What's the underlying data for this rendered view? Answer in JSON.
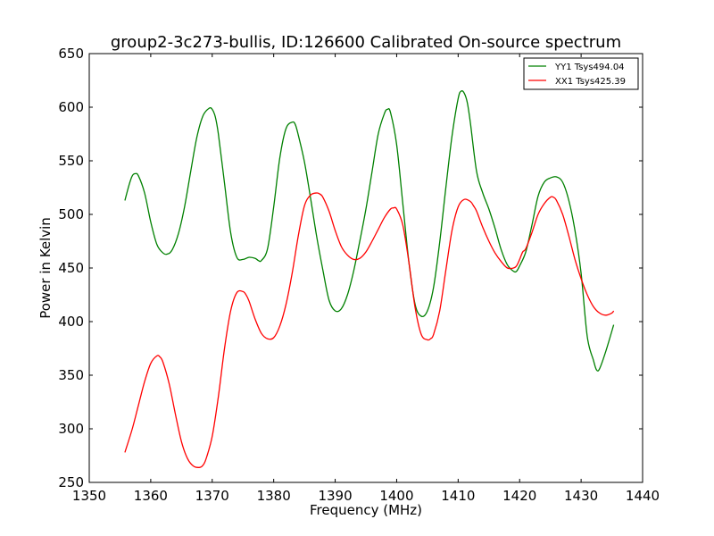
{
  "chart_data": {
    "type": "line",
    "title": "group2-3c273-bullis, ID:126600 Calibrated On-source spectrum",
    "xlabel": "Frequency (MHz)",
    "ylabel": "Power in Kelvin",
    "xlim": [
      1350,
      1440
    ],
    "ylim": [
      250,
      650
    ],
    "xticks": [
      1350,
      1360,
      1370,
      1380,
      1390,
      1400,
      1410,
      1420,
      1430,
      1440
    ],
    "yticks": [
      250,
      300,
      350,
      400,
      450,
      500,
      550,
      600,
      650
    ],
    "grid": false,
    "legend_position": "top-right",
    "series": [
      {
        "name": "YY1 Tsys494.04",
        "color": "#008000",
        "x": [
          1355.8,
          1356.5,
          1357.0,
          1357.5,
          1358.0,
          1359.0,
          1360.0,
          1361.0,
          1362.0,
          1362.7,
          1363.5,
          1364.5,
          1365.5,
          1366.5,
          1367.5,
          1368.5,
          1369.5,
          1370.0,
          1370.5,
          1371.0,
          1372.0,
          1373.0,
          1374.0,
          1375.0,
          1376.0,
          1377.0,
          1377.5,
          1378.0,
          1379.0,
          1380.0,
          1381.0,
          1382.0,
          1383.0,
          1383.5,
          1384.0,
          1385.0,
          1386.0,
          1387.0,
          1388.0,
          1389.0,
          1390.0,
          1391.0,
          1392.0,
          1393.0,
          1394.0,
          1395.0,
          1396.0,
          1397.0,
          1398.0,
          1398.5,
          1399.0,
          1400.0,
          1401.0,
          1402.0,
          1403.0,
          1404.0,
          1405.0,
          1406.0,
          1407.0,
          1408.0,
          1409.0,
          1410.0,
          1410.5,
          1411.0,
          1411.5,
          1412.0,
          1413.0,
          1414.0,
          1415.0,
          1416.0,
          1417.0,
          1418.0,
          1419.0,
          1419.5,
          1420.0,
          1421.0,
          1422.0,
          1423.0,
          1424.0,
          1425.0,
          1426.0,
          1427.0,
          1428.0,
          1429.0,
          1430.0,
          1431.0,
          1432.0,
          1432.5,
          1433.0,
          1434.0,
          1435.3
        ],
        "values": [
          513,
          528,
          536,
          538,
          536,
          520,
          493,
          472,
          464,
          463,
          467,
          482,
          507,
          540,
          572,
          592,
          599,
          598,
          591,
          575,
          529,
          483,
          460,
          458,
          460,
          459,
          457,
          457,
          468,
          507,
          553,
          580,
          586,
          584,
          574,
          549,
          515,
          479,
          448,
          420,
          410,
          412,
          425,
          447,
          475,
          505,
          540,
          575,
          594,
          598,
          595,
          565,
          510,
          455,
          416,
          405,
          410,
          432,
          474,
          525,
          573,
          608,
          615,
          613,
          604,
          585,
          540,
          520,
          505,
          487,
          467,
          453,
          447,
          447,
          452,
          465,
          490,
          517,
          530,
          534,
          535,
          530,
          513,
          485,
          445,
          386,
          364,
          355,
          356,
          372,
          397
        ]
      },
      {
        "name": "XX1 Tsys425.39",
        "color": "#ff0000",
        "x": [
          1355.8,
          1357.0,
          1358.0,
          1359.0,
          1360.0,
          1361.0,
          1361.5,
          1362.0,
          1363.0,
          1364.0,
          1365.0,
          1366.0,
          1367.0,
          1368.0,
          1368.5,
          1369.0,
          1370.0,
          1371.0,
          1372.0,
          1373.0,
          1374.0,
          1375.0,
          1375.5,
          1376.0,
          1377.0,
          1378.0,
          1379.0,
          1380.0,
          1381.0,
          1382.0,
          1383.0,
          1384.0,
          1385.0,
          1386.0,
          1387.0,
          1387.5,
          1388.0,
          1389.0,
          1390.0,
          1391.0,
          1392.0,
          1393.0,
          1394.0,
          1395.0,
          1396.0,
          1397.0,
          1398.0,
          1399.0,
          1399.5,
          1400.0,
          1401.0,
          1402.0,
          1403.0,
          1404.0,
          1405.0,
          1405.5,
          1406.0,
          1407.0,
          1408.0,
          1409.0,
          1410.0,
          1411.0,
          1412.0,
          1412.5,
          1413.0,
          1414.0,
          1415.0,
          1416.0,
          1417.0,
          1418.0,
          1419.0,
          1419.5,
          1420.0,
          1420.5,
          1421.0,
          1422.0,
          1423.0,
          1424.0,
          1425.0,
          1425.5,
          1426.0,
          1427.0,
          1428.0,
          1429.0,
          1430.0,
          1431.0,
          1432.0,
          1433.0,
          1434.0,
          1435.0,
          1435.3
        ],
        "values": [
          278,
          300,
          322,
          344,
          361,
          368,
          367,
          362,
          342,
          314,
          288,
          272,
          265,
          264,
          266,
          272,
          293,
          330,
          375,
          410,
          427,
          428,
          425,
          419,
          402,
          389,
          384,
          385,
          396,
          416,
          445,
          480,
          508,
          518,
          520,
          519,
          516,
          503,
          485,
          470,
          462,
          458,
          459,
          465,
          475,
          486,
          497,
          505,
          506,
          505,
          490,
          455,
          413,
          388,
          383,
          384,
          388,
          410,
          448,
          485,
          507,
          514,
          512,
          508,
          503,
          488,
          475,
          464,
          456,
          450,
          450,
          452,
          458,
          465,
          468,
          483,
          500,
          510,
          516,
          516,
          513,
          500,
          480,
          458,
          440,
          425,
          414,
          408,
          406,
          408,
          410
        ]
      }
    ]
  }
}
